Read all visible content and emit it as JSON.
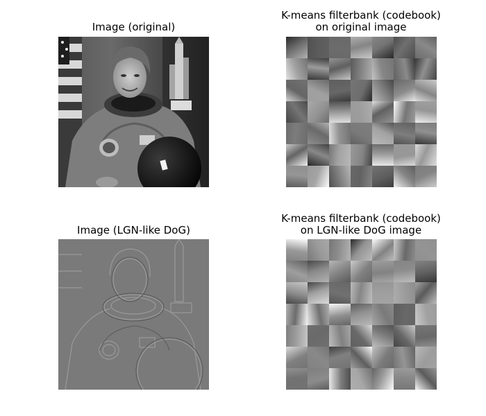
{
  "figure": {
    "panels": [
      {
        "id": "tl",
        "title": "Image (original)"
      },
      {
        "id": "tr",
        "title": "K-means filterbank (codebook)\non original image"
      },
      {
        "id": "bl",
        "title": "Image (LGN-like DoG)"
      },
      {
        "id": "br",
        "title": "K-means filterbank (codebook)\non LGN-like DoG image"
      }
    ]
  },
  "colors": {
    "background": "#ffffff",
    "text": "#000000",
    "dog_gray": "#7a7a7a"
  },
  "icons": {
    "astronaut_photo": "astronaut-photo-icon",
    "dog_edge_map": "dog-edge-icon"
  }
}
